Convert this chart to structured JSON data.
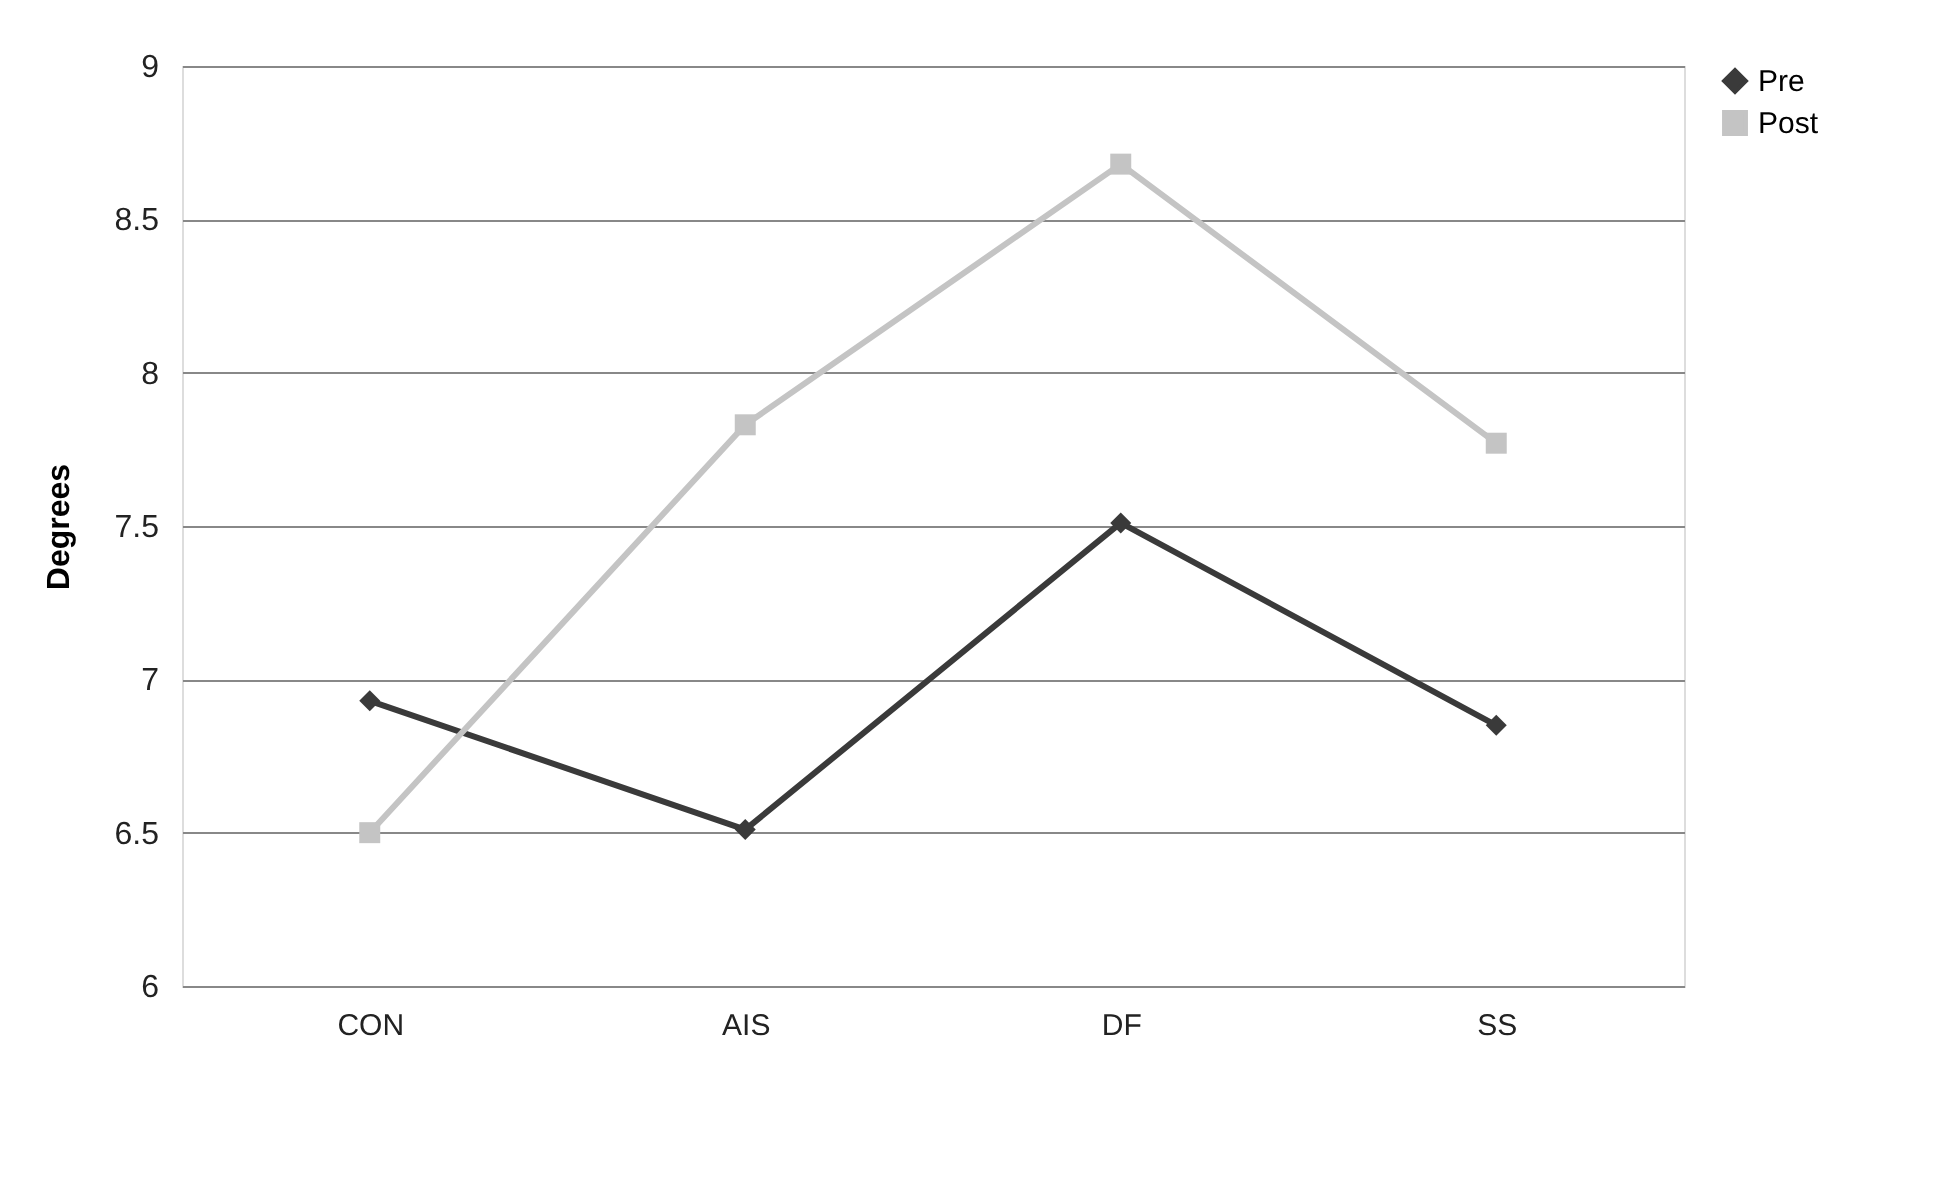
{
  "chart_data": {
    "type": "line",
    "ylabel": "Degrees",
    "categories": [
      "CON",
      "AIS",
      "DF",
      "SS"
    ],
    "series": [
      {
        "name": "Pre",
        "color": "#3a3a3a",
        "marker": "diamond",
        "values": [
          6.93,
          6.51,
          7.51,
          6.85
        ]
      },
      {
        "name": "Post",
        "color": "#c4c4c4",
        "marker": "square",
        "values": [
          6.5,
          7.83,
          8.68,
          7.77
        ]
      }
    ],
    "ylim": [
      6,
      9
    ],
    "yticks": [
      6,
      6.5,
      7,
      7.5,
      8,
      8.5,
      9
    ],
    "grid": "y",
    "legend": "right"
  }
}
